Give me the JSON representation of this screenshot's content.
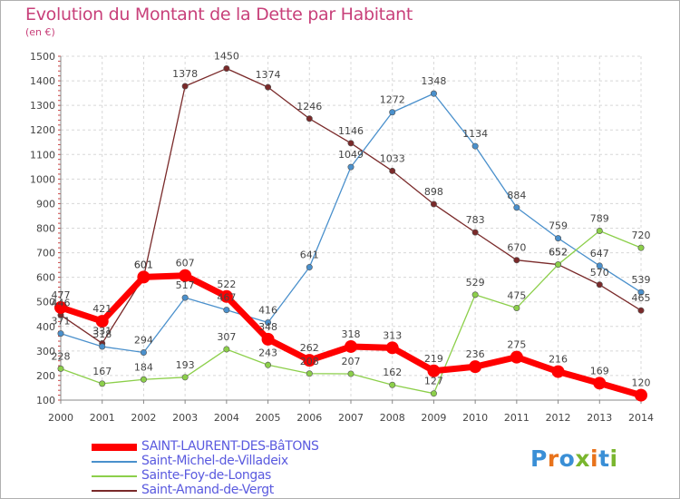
{
  "header": {
    "title": "Evolution du Montant de la Dette par Habitant",
    "unit": "(en €)"
  },
  "logo": {
    "text": "Proxiti",
    "colors": [
      "#3a8fd6",
      "#e8731c",
      "#3a8fd6",
      "#7ab62e",
      "#e8731c",
      "#3a8fd6",
      "#7ab62e"
    ]
  },
  "chart_data": {
    "type": "line",
    "x": [
      "2000",
      "2001",
      "2002",
      "2003",
      "2004",
      "2005",
      "2006",
      "2007",
      "2008",
      "2009",
      "2010",
      "2011",
      "2012",
      "2013",
      "2014"
    ],
    "ylim": [
      100,
      1500
    ],
    "yticks": [
      100,
      200,
      300,
      400,
      500,
      600,
      700,
      800,
      900,
      1000,
      1100,
      1200,
      1300,
      1400,
      1500
    ],
    "grid": true,
    "legend_position": "bottom-left",
    "series": [
      {
        "name": "SAINT-LAURENT-DES-BâTONS",
        "color": "#ff0000",
        "values": [
          477,
          421,
          601,
          607,
          522,
          348,
          262,
          318,
          313,
          219,
          236,
          275,
          216,
          169,
          120
        ],
        "labels": [
          "477",
          "421",
          "601",
          "607",
          "522",
          "348",
          "262",
          "318",
          "313",
          "219",
          "236",
          "275",
          "216",
          "169",
          "120"
        ]
      },
      {
        "name": "Saint-Michel-de-Villadeix",
        "color": "#4a90cc",
        "values": [
          371,
          318,
          294,
          517,
          467,
          416,
          641,
          1049,
          1272,
          1348,
          1134,
          884,
          759,
          647,
          539
        ],
        "labels": [
          "371",
          "318",
          "294",
          "517",
          "467",
          "416",
          "641",
          "1049",
          "1272",
          "1348",
          "1134",
          "884",
          "759",
          "647",
          "539"
        ]
      },
      {
        "name": "Sainte-Foy-de-Longas",
        "color": "#8ccf4a",
        "values": [
          228,
          167,
          184,
          193,
          307,
          243,
          208,
          207,
          162,
          127,
          529,
          475,
          652,
          789,
          720
        ],
        "labels": [
          "228",
          "167",
          "184",
          "193",
          "307",
          "243",
          "208",
          "207",
          "162",
          "127",
          "529",
          "475",
          "652",
          "789",
          "720"
        ]
      },
      {
        "name": "Saint-Amand-de-Vergt",
        "color": "#7a2a2a",
        "values": [
          446,
          331,
          601,
          1378,
          1450,
          1374,
          1246,
          1146,
          1033,
          898,
          783,
          670,
          652,
          570,
          465
        ],
        "labels": [
          "446",
          "331",
          "601",
          "1378",
          "1450",
          "1374",
          "1246",
          "1146",
          "1033",
          "898",
          "783",
          "670",
          "652",
          "570",
          "465"
        ]
      }
    ]
  }
}
